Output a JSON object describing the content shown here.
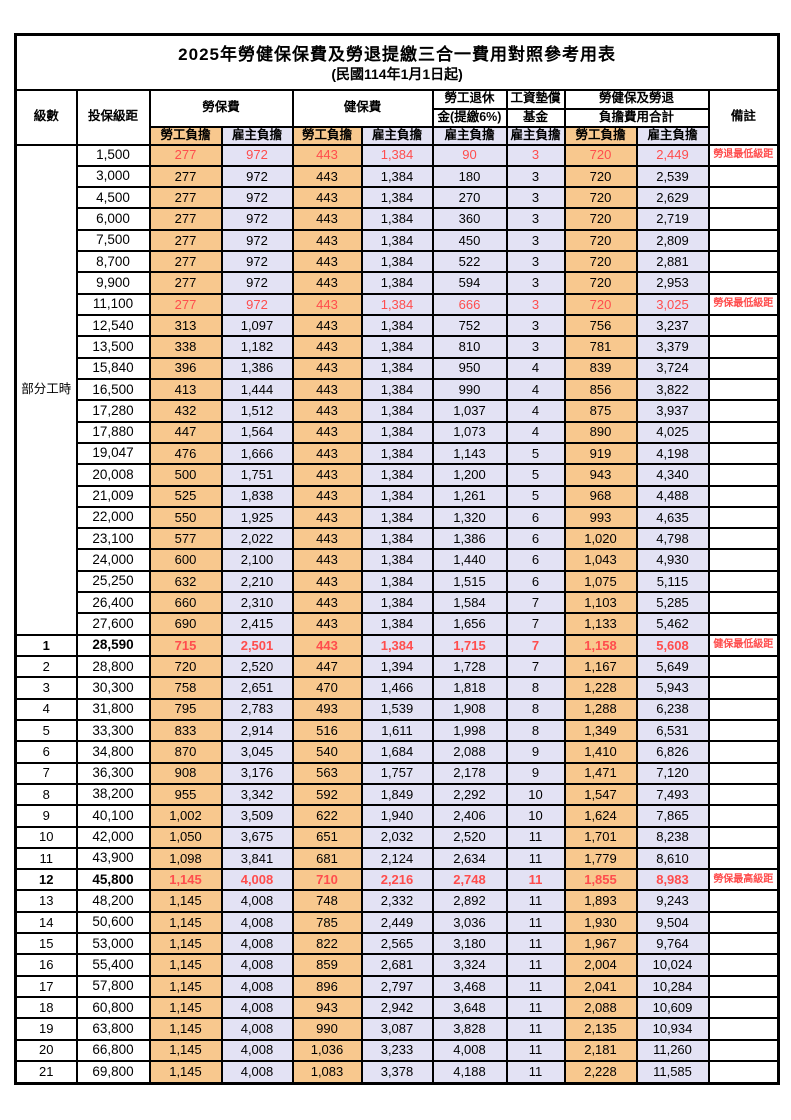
{
  "table": {
    "title": "2025年勞健保保費及勞退提繳三合一費用對照參考用表",
    "subtitle": "(民國114年1月1日起)",
    "header": {
      "level": "級數",
      "bracket": "投保級距",
      "labor_ins": "勞保費",
      "health_ins": "健保費",
      "pension_line1": "勞工退休",
      "pension_line2": "金(提繳6%)",
      "wage_fund_line1": "工資墊償",
      "wage_fund_line2": "基金",
      "total_line1": "勞健保及勞退",
      "total_line2": "負擔費用合計",
      "remark": "備註",
      "employee": "勞工負擔",
      "employer": "雇主負擔"
    },
    "part_time_label": "部分工時",
    "part_time_row_count": 23,
    "colors": {
      "employee_bg": "#F8C88E",
      "employer_bg": "#E3E2F4",
      "highlight_text": "#FF4D4D",
      "border": "#000000"
    },
    "value_columns": [
      "labor-ins-employee",
      "labor-ins-employer",
      "health-ins-employee",
      "health-ins-employer",
      "pension-employer",
      "wage-fund-employer",
      "total-employee",
      "total-employer"
    ],
    "rows": [
      {
        "bracket": "1,500",
        "v": [
          "277",
          "972",
          "443",
          "1,384",
          "90",
          "3",
          "720",
          "2,449"
        ],
        "remark": "勞退最低級距",
        "hl": true
      },
      {
        "bracket": "3,000",
        "v": [
          "277",
          "972",
          "443",
          "1,384",
          "180",
          "3",
          "720",
          "2,539"
        ]
      },
      {
        "bracket": "4,500",
        "v": [
          "277",
          "972",
          "443",
          "1,384",
          "270",
          "3",
          "720",
          "2,629"
        ]
      },
      {
        "bracket": "6,000",
        "v": [
          "277",
          "972",
          "443",
          "1,384",
          "360",
          "3",
          "720",
          "2,719"
        ]
      },
      {
        "bracket": "7,500",
        "v": [
          "277",
          "972",
          "443",
          "1,384",
          "450",
          "3",
          "720",
          "2,809"
        ]
      },
      {
        "bracket": "8,700",
        "v": [
          "277",
          "972",
          "443",
          "1,384",
          "522",
          "3",
          "720",
          "2,881"
        ]
      },
      {
        "bracket": "9,900",
        "v": [
          "277",
          "972",
          "443",
          "1,384",
          "594",
          "3",
          "720",
          "2,953"
        ]
      },
      {
        "bracket": "11,100",
        "v": [
          "277",
          "972",
          "443",
          "1,384",
          "666",
          "3",
          "720",
          "3,025"
        ],
        "remark": "勞保最低級距",
        "hl": true
      },
      {
        "bracket": "12,540",
        "v": [
          "313",
          "1,097",
          "443",
          "1,384",
          "752",
          "3",
          "756",
          "3,237"
        ]
      },
      {
        "bracket": "13,500",
        "v": [
          "338",
          "1,182",
          "443",
          "1,384",
          "810",
          "3",
          "781",
          "3,379"
        ]
      },
      {
        "bracket": "15,840",
        "v": [
          "396",
          "1,386",
          "443",
          "1,384",
          "950",
          "4",
          "839",
          "3,724"
        ]
      },
      {
        "bracket": "16,500",
        "v": [
          "413",
          "1,444",
          "443",
          "1,384",
          "990",
          "4",
          "856",
          "3,822"
        ]
      },
      {
        "bracket": "17,280",
        "v": [
          "432",
          "1,512",
          "443",
          "1,384",
          "1,037",
          "4",
          "875",
          "3,937"
        ]
      },
      {
        "bracket": "17,880",
        "v": [
          "447",
          "1,564",
          "443",
          "1,384",
          "1,073",
          "4",
          "890",
          "4,025"
        ]
      },
      {
        "bracket": "19,047",
        "v": [
          "476",
          "1,666",
          "443",
          "1,384",
          "1,143",
          "5",
          "919",
          "4,198"
        ]
      },
      {
        "bracket": "20,008",
        "v": [
          "500",
          "1,751",
          "443",
          "1,384",
          "1,200",
          "5",
          "943",
          "4,340"
        ]
      },
      {
        "bracket": "21,009",
        "v": [
          "525",
          "1,838",
          "443",
          "1,384",
          "1,261",
          "5",
          "968",
          "4,488"
        ]
      },
      {
        "bracket": "22,000",
        "v": [
          "550",
          "1,925",
          "443",
          "1,384",
          "1,320",
          "6",
          "993",
          "4,635"
        ]
      },
      {
        "bracket": "23,100",
        "v": [
          "577",
          "2,022",
          "443",
          "1,384",
          "1,386",
          "6",
          "1,020",
          "4,798"
        ]
      },
      {
        "bracket": "24,000",
        "v": [
          "600",
          "2,100",
          "443",
          "1,384",
          "1,440",
          "6",
          "1,043",
          "4,930"
        ]
      },
      {
        "bracket": "25,250",
        "v": [
          "632",
          "2,210",
          "443",
          "1,384",
          "1,515",
          "6",
          "1,075",
          "5,115"
        ]
      },
      {
        "bracket": "26,400",
        "v": [
          "660",
          "2,310",
          "443",
          "1,384",
          "1,584",
          "7",
          "1,103",
          "5,285"
        ]
      },
      {
        "bracket": "27,600",
        "v": [
          "690",
          "2,415",
          "443",
          "1,384",
          "1,656",
          "7",
          "1,133",
          "5,462"
        ]
      },
      {
        "level": "1",
        "bracket": "28,590",
        "v": [
          "715",
          "2,501",
          "443",
          "1,384",
          "1,715",
          "7",
          "1,158",
          "5,608"
        ],
        "remark": "健保最低級距",
        "hl": true,
        "bold": true
      },
      {
        "level": "2",
        "bracket": "28,800",
        "v": [
          "720",
          "2,520",
          "447",
          "1,394",
          "1,728",
          "7",
          "1,167",
          "5,649"
        ]
      },
      {
        "level": "3",
        "bracket": "30,300",
        "v": [
          "758",
          "2,651",
          "470",
          "1,466",
          "1,818",
          "8",
          "1,228",
          "5,943"
        ]
      },
      {
        "level": "4",
        "bracket": "31,800",
        "v": [
          "795",
          "2,783",
          "493",
          "1,539",
          "1,908",
          "8",
          "1,288",
          "6,238"
        ]
      },
      {
        "level": "5",
        "bracket": "33,300",
        "v": [
          "833",
          "2,914",
          "516",
          "1,611",
          "1,998",
          "8",
          "1,349",
          "6,531"
        ]
      },
      {
        "level": "6",
        "bracket": "34,800",
        "v": [
          "870",
          "3,045",
          "540",
          "1,684",
          "2,088",
          "9",
          "1,410",
          "6,826"
        ]
      },
      {
        "level": "7",
        "bracket": "36,300",
        "v": [
          "908",
          "3,176",
          "563",
          "1,757",
          "2,178",
          "9",
          "1,471",
          "7,120"
        ]
      },
      {
        "level": "8",
        "bracket": "38,200",
        "v": [
          "955",
          "3,342",
          "592",
          "1,849",
          "2,292",
          "10",
          "1,547",
          "7,493"
        ]
      },
      {
        "level": "9",
        "bracket": "40,100",
        "v": [
          "1,002",
          "3,509",
          "622",
          "1,940",
          "2,406",
          "10",
          "1,624",
          "7,865"
        ]
      },
      {
        "level": "10",
        "bracket": "42,000",
        "v": [
          "1,050",
          "3,675",
          "651",
          "2,032",
          "2,520",
          "11",
          "1,701",
          "8,238"
        ]
      },
      {
        "level": "11",
        "bracket": "43,900",
        "v": [
          "1,098",
          "3,841",
          "681",
          "2,124",
          "2,634",
          "11",
          "1,779",
          "8,610"
        ]
      },
      {
        "level": "12",
        "bracket": "45,800",
        "v": [
          "1,145",
          "4,008",
          "710",
          "2,216",
          "2,748",
          "11",
          "1,855",
          "8,983"
        ],
        "remark": "勞保最高級距",
        "hl": true,
        "bold": true
      },
      {
        "level": "13",
        "bracket": "48,200",
        "v": [
          "1,145",
          "4,008",
          "748",
          "2,332",
          "2,892",
          "11",
          "1,893",
          "9,243"
        ]
      },
      {
        "level": "14",
        "bracket": "50,600",
        "v": [
          "1,145",
          "4,008",
          "785",
          "2,449",
          "3,036",
          "11",
          "1,930",
          "9,504"
        ]
      },
      {
        "level": "15",
        "bracket": "53,000",
        "v": [
          "1,145",
          "4,008",
          "822",
          "2,565",
          "3,180",
          "11",
          "1,967",
          "9,764"
        ]
      },
      {
        "level": "16",
        "bracket": "55,400",
        "v": [
          "1,145",
          "4,008",
          "859",
          "2,681",
          "3,324",
          "11",
          "2,004",
          "10,024"
        ]
      },
      {
        "level": "17",
        "bracket": "57,800",
        "v": [
          "1,145",
          "4,008",
          "896",
          "2,797",
          "3,468",
          "11",
          "2,041",
          "10,284"
        ]
      },
      {
        "level": "18",
        "bracket": "60,800",
        "v": [
          "1,145",
          "4,008",
          "943",
          "2,942",
          "3,648",
          "11",
          "2,088",
          "10,609"
        ]
      },
      {
        "level": "19",
        "bracket": "63,800",
        "v": [
          "1,145",
          "4,008",
          "990",
          "3,087",
          "3,828",
          "11",
          "2,135",
          "10,934"
        ]
      },
      {
        "level": "20",
        "bracket": "66,800",
        "v": [
          "1,145",
          "4,008",
          "1,036",
          "3,233",
          "4,008",
          "11",
          "2,181",
          "11,260"
        ]
      },
      {
        "level": "21",
        "bracket": "69,800",
        "v": [
          "1,145",
          "4,008",
          "1,083",
          "3,378",
          "4,188",
          "11",
          "2,228",
          "11,585"
        ]
      }
    ]
  }
}
